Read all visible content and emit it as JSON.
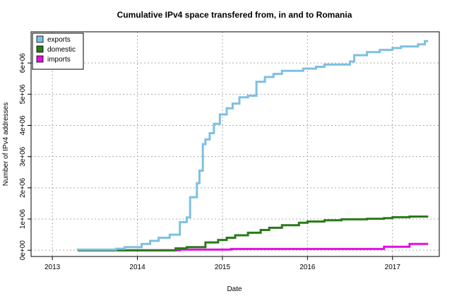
{
  "chart_data": {
    "type": "line",
    "title": "Cumulative IPv4 space transfered from, in and to Romania",
    "xlabel": "Date",
    "ylabel": "Number of IPv4 addresses",
    "x_ticks": [
      "2013",
      "2014",
      "2015",
      "2016",
      "2017"
    ],
    "y_ticks": [
      "0e+00",
      "1e+06",
      "2e+06",
      "3e+06",
      "4e+06",
      "5e+06",
      "6e+06"
    ],
    "x_range": [
      2012.75,
      2017.55
    ],
    "y_range": [
      -200000,
      7000000
    ],
    "grid": true,
    "legend_position": "top-left",
    "series": [
      {
        "name": "exports",
        "color": "#7ec0e0",
        "points": [
          [
            2013.3,
            0
          ],
          [
            2013.3,
            20000
          ],
          [
            2013.75,
            20000
          ],
          [
            2013.75,
            50000
          ],
          [
            2013.85,
            50000
          ],
          [
            2013.85,
            100000
          ],
          [
            2014.05,
            100000
          ],
          [
            2014.05,
            200000
          ],
          [
            2014.15,
            200000
          ],
          [
            2014.15,
            300000
          ],
          [
            2014.25,
            300000
          ],
          [
            2014.25,
            400000
          ],
          [
            2014.38,
            400000
          ],
          [
            2014.38,
            500000
          ],
          [
            2014.5,
            500000
          ],
          [
            2014.5,
            900000
          ],
          [
            2014.58,
            900000
          ],
          [
            2014.58,
            1050000
          ],
          [
            2014.62,
            1050000
          ],
          [
            2014.62,
            1700000
          ],
          [
            2014.7,
            1700000
          ],
          [
            2014.7,
            2150000
          ],
          [
            2014.73,
            2150000
          ],
          [
            2014.73,
            2550000
          ],
          [
            2014.77,
            2550000
          ],
          [
            2014.77,
            3400000
          ],
          [
            2014.8,
            3400000
          ],
          [
            2014.8,
            3550000
          ],
          [
            2014.85,
            3550000
          ],
          [
            2014.85,
            3750000
          ],
          [
            2014.9,
            3750000
          ],
          [
            2014.9,
            4050000
          ],
          [
            2014.97,
            4050000
          ],
          [
            2014.97,
            4350000
          ],
          [
            2015.05,
            4350000
          ],
          [
            2015.05,
            4550000
          ],
          [
            2015.12,
            4550000
          ],
          [
            2015.12,
            4700000
          ],
          [
            2015.2,
            4700000
          ],
          [
            2015.2,
            4900000
          ],
          [
            2015.3,
            4900000
          ],
          [
            2015.3,
            4950000
          ],
          [
            2015.4,
            4950000
          ],
          [
            2015.4,
            5400000
          ],
          [
            2015.5,
            5400000
          ],
          [
            2015.5,
            5550000
          ],
          [
            2015.6,
            5550000
          ],
          [
            2015.6,
            5650000
          ],
          [
            2015.7,
            5650000
          ],
          [
            2015.7,
            5750000
          ],
          [
            2015.95,
            5750000
          ],
          [
            2015.95,
            5820000
          ],
          [
            2016.1,
            5820000
          ],
          [
            2016.1,
            5880000
          ],
          [
            2016.2,
            5880000
          ],
          [
            2016.2,
            5950000
          ],
          [
            2016.5,
            5950000
          ],
          [
            2016.5,
            6050000
          ],
          [
            2016.55,
            6050000
          ],
          [
            2016.55,
            6250000
          ],
          [
            2016.7,
            6250000
          ],
          [
            2016.7,
            6350000
          ],
          [
            2016.85,
            6350000
          ],
          [
            2016.85,
            6420000
          ],
          [
            2017.0,
            6420000
          ],
          [
            2017.0,
            6480000
          ],
          [
            2017.1,
            6480000
          ],
          [
            2017.1,
            6530000
          ],
          [
            2017.3,
            6530000
          ],
          [
            2017.3,
            6600000
          ],
          [
            2017.38,
            6600000
          ],
          [
            2017.38,
            6700000
          ],
          [
            2017.42,
            6700000
          ]
        ]
      },
      {
        "name": "domestic",
        "color": "#2a7a1a",
        "points": [
          [
            2013.3,
            0
          ],
          [
            2014.45,
            0
          ],
          [
            2014.45,
            60000
          ],
          [
            2014.58,
            60000
          ],
          [
            2014.58,
            100000
          ],
          [
            2014.8,
            100000
          ],
          [
            2014.8,
            250000
          ],
          [
            2014.95,
            250000
          ],
          [
            2014.95,
            330000
          ],
          [
            2015.05,
            330000
          ],
          [
            2015.05,
            400000
          ],
          [
            2015.15,
            400000
          ],
          [
            2015.15,
            480000
          ],
          [
            2015.3,
            480000
          ],
          [
            2015.3,
            560000
          ],
          [
            2015.45,
            560000
          ],
          [
            2015.45,
            650000
          ],
          [
            2015.55,
            650000
          ],
          [
            2015.55,
            720000
          ],
          [
            2015.7,
            720000
          ],
          [
            2015.7,
            800000
          ],
          [
            2015.9,
            800000
          ],
          [
            2015.9,
            880000
          ],
          [
            2016.0,
            880000
          ],
          [
            2016.0,
            920000
          ],
          [
            2016.2,
            920000
          ],
          [
            2016.2,
            960000
          ],
          [
            2016.4,
            960000
          ],
          [
            2016.4,
            990000
          ],
          [
            2016.7,
            990000
          ],
          [
            2016.7,
            1010000
          ],
          [
            2016.9,
            1010000
          ],
          [
            2016.9,
            1030000
          ],
          [
            2017.0,
            1030000
          ],
          [
            2017.0,
            1060000
          ],
          [
            2017.2,
            1060000
          ],
          [
            2017.2,
            1080000
          ],
          [
            2017.42,
            1080000
          ]
        ]
      },
      {
        "name": "imports",
        "color": "#e010e0",
        "points": [
          [
            2013.3,
            0
          ],
          [
            2014.5,
            0
          ],
          [
            2014.5,
            20000
          ],
          [
            2015.1,
            20000
          ],
          [
            2015.1,
            40000
          ],
          [
            2016.9,
            40000
          ],
          [
            2016.9,
            110000
          ],
          [
            2017.2,
            110000
          ],
          [
            2017.2,
            200000
          ],
          [
            2017.42,
            200000
          ]
        ]
      }
    ]
  }
}
